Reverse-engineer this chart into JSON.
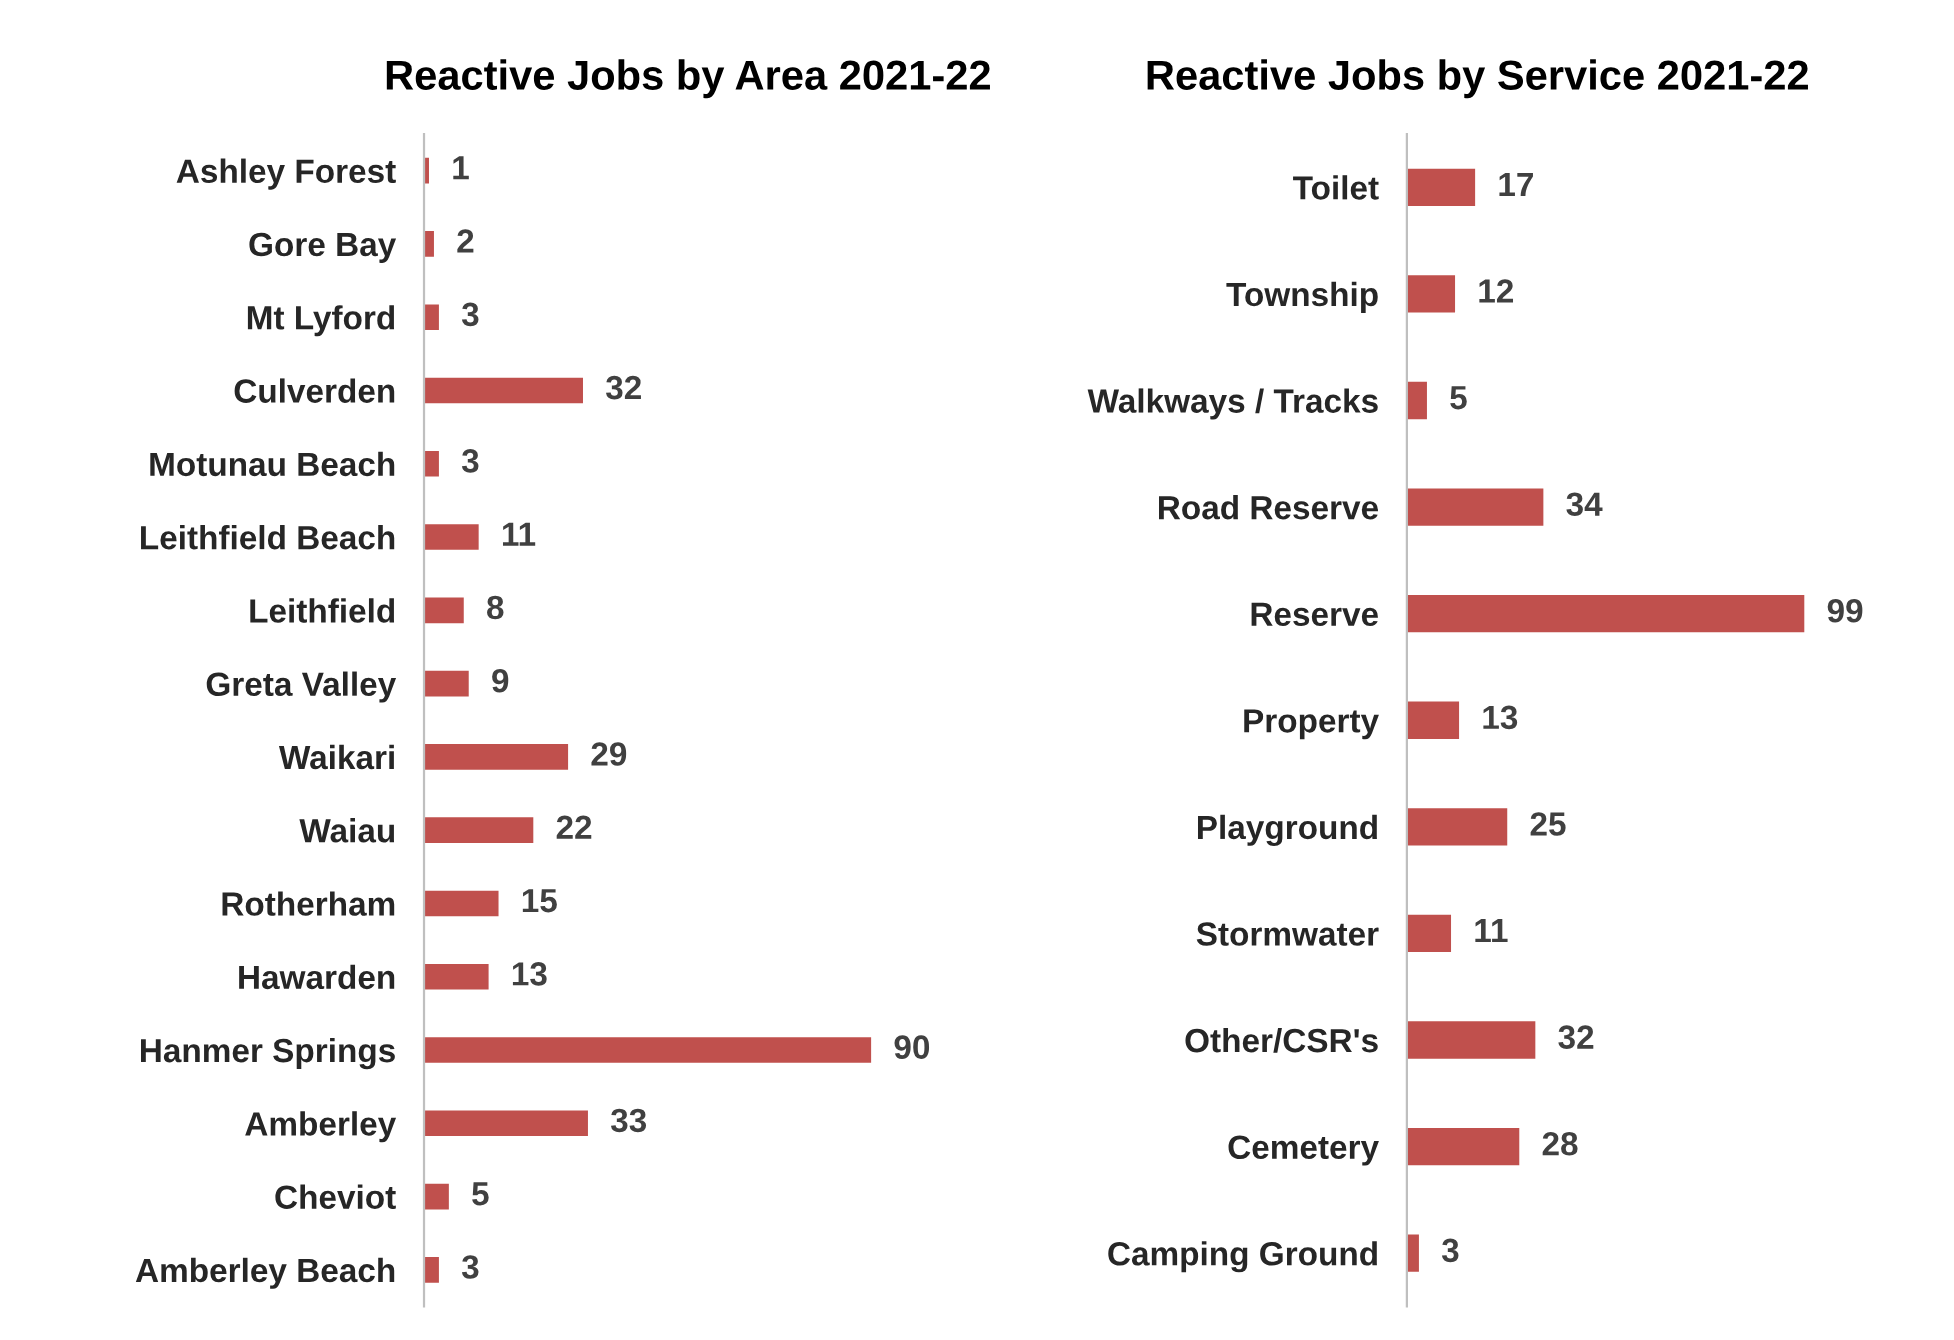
{
  "chart_data": [
    {
      "type": "bar",
      "orientation": "horizontal",
      "title": "Reactive Jobs by Area 2021-22",
      "data_labels": true,
      "grid": false,
      "legend": false,
      "categories": [
        "Ashley Forest",
        "Gore Bay",
        "Mt Lyford",
        "Culverden",
        "Motunau Beach",
        "Leithfield Beach",
        "Leithfield",
        "Greta Valley",
        "Waikari",
        "Waiau",
        "Rotherham",
        "Hawarden",
        "Hanmer Springs",
        "Amberley",
        "Cheviot",
        "Amberley Beach"
      ],
      "values": [
        1,
        2,
        3,
        32,
        3,
        11,
        8,
        9,
        29,
        22,
        15,
        13,
        90,
        33,
        5,
        3
      ],
      "color": "#c0504d"
    },
    {
      "type": "bar",
      "orientation": "horizontal",
      "title": "Reactive Jobs by Service 2021-22",
      "data_labels": true,
      "grid": false,
      "legend": false,
      "categories": [
        "Toilet",
        "Township",
        "Walkways / Tracks",
        "Road Reserve",
        "Reserve",
        "Property",
        "Playground",
        "Stormwater",
        "Other/CSR's",
        "Cemetery",
        "Camping Ground"
      ],
      "values": [
        17,
        12,
        5,
        34,
        99,
        13,
        25,
        11,
        32,
        28,
        3
      ],
      "color": "#c0504d"
    }
  ]
}
